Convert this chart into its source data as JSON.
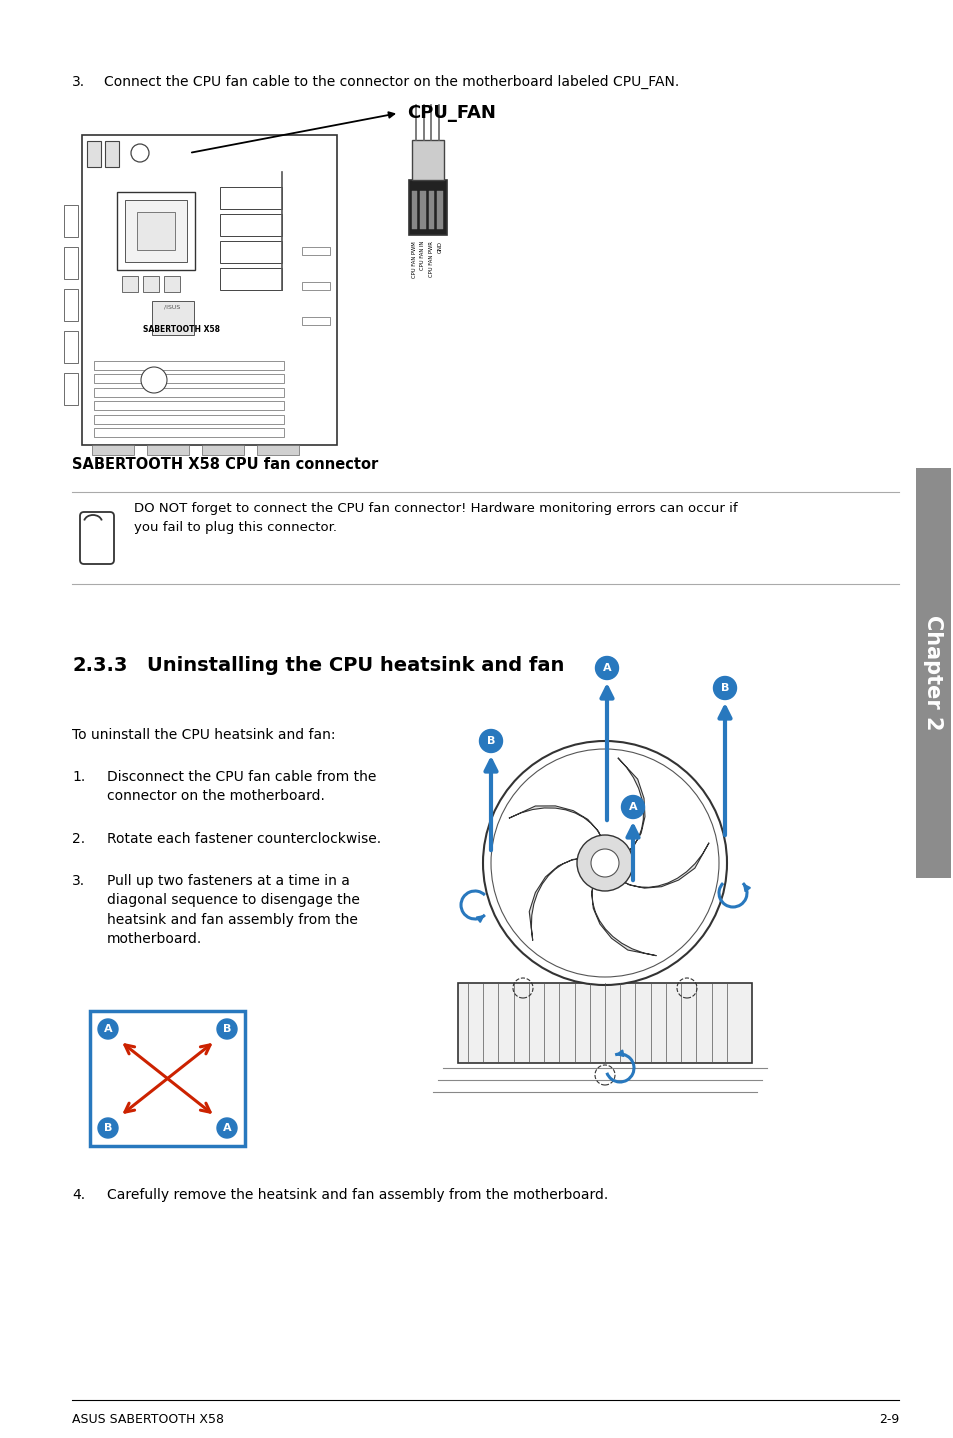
{
  "bg_color": "#ffffff",
  "text_color": "#000000",
  "page_width": 9.54,
  "page_height": 14.38,
  "ml": 0.72,
  "mr": 0.55,
  "step3_num": "3.",
  "step3_text": "Connect the CPU fan cable to the connector on the motherboard labeled CPU_FAN.",
  "caption_bold": "SABERTOOTH X58 CPU fan connector",
  "warning_text": "DO NOT forget to connect the CPU fan connector! Hardware monitoring errors can occur if\nyou fail to plug this connector.",
  "section_number": "2.3.3",
  "section_title": "Uninstalling the CPU heatsink and fan",
  "intro_text": "To uninstall the CPU heatsink and fan:",
  "step1_num": "1.",
  "step1": "Disconnect the CPU fan cable from the\nconnector on the motherboard.",
  "step2_num": "2.",
  "step2": "Rotate each fastener counterclockwise.",
  "step3b_num": "3.",
  "step3b": "Pull up two fasteners at a time in a\ndiagonal sequence to disengage the\nheatsink and fan assembly from the\nmotherboard.",
  "step4_num": "4.",
  "step4": "Carefully remove the heatsink and fan assembly from the motherboard.",
  "footer_left": "ASUS SABERTOOTH X58",
  "footer_right": "2-9",
  "chapter_label": "Chapter 2",
  "sidebar_color": "#8c8c8c",
  "blue_color": "#2878be",
  "red_color": "#cc2200",
  "line_color": "#aaaaaa",
  "body_fontsize": 10,
  "section_fontsize": 14
}
